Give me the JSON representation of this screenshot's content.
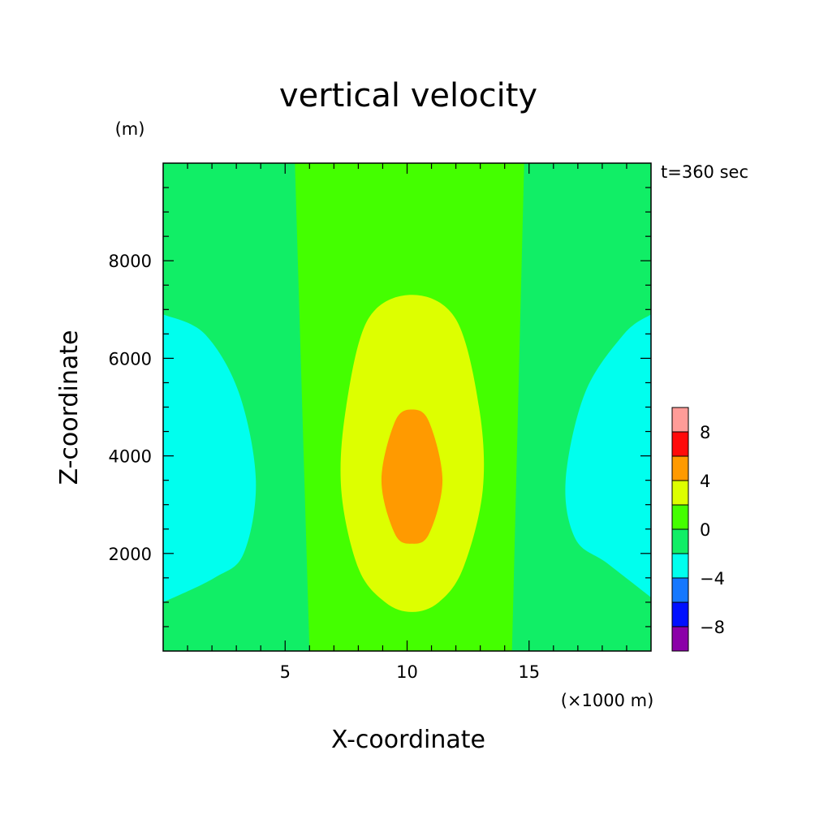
{
  "chart_data": {
    "type": "heatmap",
    "title": "vertical velocity",
    "xlabel": "X-coordinate",
    "ylabel": "Z-coordinate",
    "x_unit": "(×1000 m)",
    "y_unit": "(m)",
    "time_label": "t=360 sec",
    "xlim": [
      0,
      20
    ],
    "ylim": [
      0,
      10000
    ],
    "x_ticks": [
      {
        "value": 5,
        "label": "5"
      },
      {
        "value": 10,
        "label": "10"
      },
      {
        "value": 15,
        "label": "15"
      }
    ],
    "y_ticks": [
      {
        "value": 2000,
        "label": "2000"
      },
      {
        "value": 4000,
        "label": "4000"
      },
      {
        "value": 6000,
        "label": "6000"
      },
      {
        "value": 8000,
        "label": "8000"
      }
    ],
    "colorbar": {
      "levels": [
        {
          "from": -10,
          "to": -8,
          "color": "#8b00a8"
        },
        {
          "from": -8,
          "to": -6,
          "color": "#0010ff"
        },
        {
          "from": -6,
          "to": -4,
          "color": "#1478ff"
        },
        {
          "from": -4,
          "to": -2,
          "color": "#00ffee"
        },
        {
          "from": -2,
          "to": 0,
          "color": "#11ee66"
        },
        {
          "from": 0,
          "to": 2,
          "color": "#44ff00"
        },
        {
          "from": 2,
          "to": 4,
          "color": "#ddff00"
        },
        {
          "from": 4,
          "to": 6,
          "color": "#ff9a00"
        },
        {
          "from": 6,
          "to": 8,
          "color": "#ff0a0a"
        },
        {
          "from": 8,
          "to": 10,
          "color": "#ff9c98"
        }
      ],
      "tick_labels": [
        {
          "value": -8,
          "label": "−8"
        },
        {
          "value": -4,
          "label": "−4"
        },
        {
          "value": 0,
          "label": "0"
        },
        {
          "value": 4,
          "label": "4"
        },
        {
          "value": 8,
          "label": "8"
        }
      ]
    },
    "regions": [
      {
        "name": "updraft-0-2",
        "level": "0 to 2",
        "points": [
          [
            5.4,
            10000
          ],
          [
            14.8,
            10000
          ],
          [
            14.3,
            0
          ],
          [
            6.0,
            0
          ]
        ]
      },
      {
        "name": "updraft-2-4",
        "level": "2 to 4",
        "points": [
          [
            10.2,
            7300
          ],
          [
            12.0,
            6800
          ],
          [
            12.95,
            5000
          ],
          [
            13.1,
            3300
          ],
          [
            12.3,
            1700
          ],
          [
            11.3,
            1000
          ],
          [
            10.2,
            800
          ],
          [
            9.1,
            1000
          ],
          [
            8.0,
            1700
          ],
          [
            7.3,
            3300
          ],
          [
            7.5,
            5000
          ],
          [
            8.4,
            6800
          ]
        ]
      },
      {
        "name": "updraft-4-6",
        "level": "4 to 6",
        "points": [
          [
            10.2,
            4950
          ],
          [
            10.9,
            4700
          ],
          [
            11.45,
            3500
          ],
          [
            10.9,
            2400
          ],
          [
            10.2,
            2200
          ],
          [
            9.5,
            2400
          ],
          [
            8.95,
            3500
          ],
          [
            9.5,
            4700
          ]
        ]
      },
      {
        "name": "downdraft-left",
        "level": "-4 to -2",
        "points": [
          [
            0,
            6900
          ],
          [
            1.7,
            6500
          ],
          [
            3.1,
            5300
          ],
          [
            3.8,
            3500
          ],
          [
            3.3,
            2000
          ],
          [
            2.1,
            1500
          ],
          [
            0,
            1000
          ]
        ]
      },
      {
        "name": "downdraft-right",
        "level": "-4 to -2",
        "points": [
          [
            20,
            6900
          ],
          [
            18.9,
            6500
          ],
          [
            17.3,
            5300
          ],
          [
            16.5,
            3500
          ],
          [
            16.9,
            2300
          ],
          [
            18.2,
            1800
          ],
          [
            20,
            1100
          ]
        ]
      }
    ],
    "background_level": "-2 to 0",
    "grid": false
  }
}
